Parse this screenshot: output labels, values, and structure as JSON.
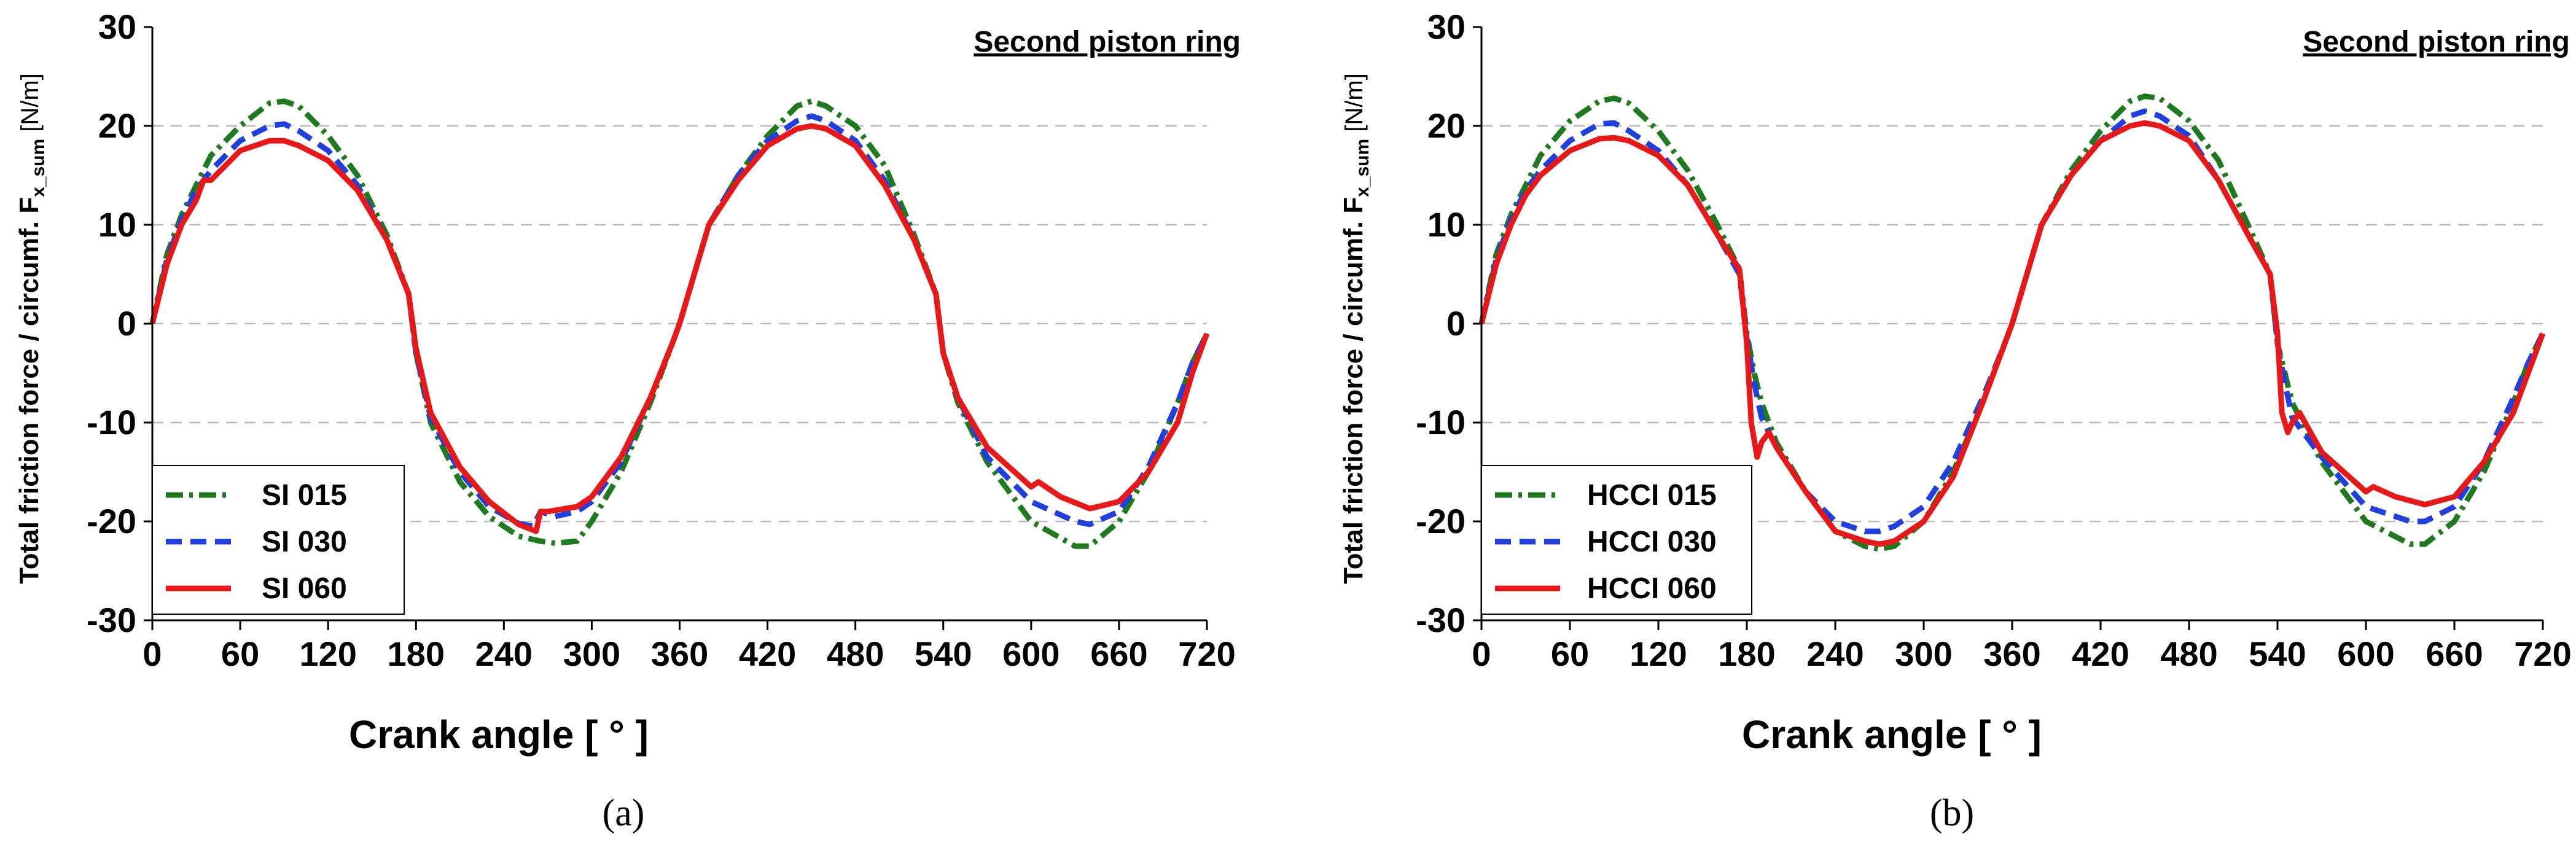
{
  "chart_data": [
    {
      "panel_label": "(a)",
      "type": "line",
      "title": "Second piston ring",
      "xlabel": "Crank angle [ ° ]",
      "ylabel": {
        "main": "Total friction force / circumf.  F",
        "sub": "x_sum",
        "unit": "[N/m]"
      },
      "xlim": [
        0,
        720
      ],
      "ylim": [
        -30,
        30
      ],
      "xticks": [
        "0",
        "60",
        "120",
        "180",
        "240",
        "300",
        "360",
        "420",
        "480",
        "540",
        "600",
        "660",
        "720"
      ],
      "yticks": [
        "30",
        "20",
        "10",
        "0",
        "-10",
        "-20",
        "-30"
      ],
      "ytick_values": [
        30,
        20,
        10,
        0,
        -10,
        -20,
        -30
      ],
      "xtick_values": [
        0,
        60,
        120,
        180,
        240,
        300,
        360,
        420,
        480,
        540,
        600,
        660,
        720
      ],
      "grid_y": [
        20,
        10,
        0,
        -10,
        -20
      ],
      "legend": {
        "position": "bottom-left"
      },
      "series": [
        {
          "name": "SI 015",
          "color": "#1f7a1f",
          "dash": "dashdot",
          "x": [
            0,
            10,
            20,
            30,
            40,
            60,
            80,
            90,
            100,
            120,
            140,
            160,
            175,
            180,
            190,
            210,
            230,
            250,
            265,
            275,
            290,
            300,
            320,
            340,
            355,
            360,
            370,
            380,
            400,
            420,
            440,
            450,
            460,
            480,
            500,
            520,
            535,
            540,
            550,
            570,
            600,
            630,
            640,
            660,
            680,
            700,
            710,
            720
          ],
          "y": [
            0,
            7,
            11,
            14,
            17,
            20,
            22.3,
            22.5,
            22,
            19,
            15,
            9,
            3,
            -3,
            -10,
            -16,
            -19.5,
            -21.5,
            -22,
            -22.2,
            -22,
            -20,
            -15,
            -8,
            -2,
            0,
            5,
            10,
            15,
            19,
            22,
            22.5,
            22,
            20,
            16,
            9,
            3,
            -3,
            -8,
            -14,
            -20,
            -22.5,
            -22.5,
            -20,
            -15,
            -8,
            -4,
            -1
          ]
        },
        {
          "name": "SI 030",
          "color": "#1f3fe0",
          "dash": "dash",
          "x": [
            0,
            10,
            20,
            30,
            40,
            60,
            80,
            90,
            100,
            120,
            140,
            160,
            175,
            180,
            190,
            210,
            230,
            250,
            260,
            265,
            275,
            290,
            300,
            320,
            340,
            355,
            360,
            370,
            380,
            400,
            420,
            440,
            450,
            460,
            480,
            500,
            520,
            535,
            540,
            550,
            570,
            600,
            630,
            640,
            660,
            680,
            700,
            710,
            720
          ],
          "y": [
            0,
            6.5,
            10.5,
            13.5,
            15.5,
            18.5,
            20,
            20.2,
            19.5,
            17.5,
            14,
            8.5,
            3,
            -3,
            -9.5,
            -15,
            -18.5,
            -20.2,
            -20.5,
            -19,
            -19.5,
            -19,
            -18,
            -14,
            -7.5,
            -2,
            0,
            5,
            10,
            15,
            18.5,
            20.5,
            21,
            20.5,
            18.5,
            14.5,
            8.5,
            3,
            -3,
            -7.5,
            -13.5,
            -18,
            -20,
            -20.3,
            -19,
            -14.5,
            -8,
            -4,
            -1
          ]
        },
        {
          "name": "SI 060",
          "color": "#e81818",
          "dash": "solid",
          "x": [
            0,
            10,
            20,
            30,
            35,
            40,
            60,
            80,
            90,
            100,
            120,
            140,
            160,
            175,
            180,
            190,
            210,
            230,
            250,
            262,
            265,
            270,
            290,
            300,
            320,
            340,
            355,
            360,
            370,
            380,
            400,
            420,
            440,
            450,
            460,
            480,
            500,
            520,
            535,
            540,
            550,
            570,
            600,
            605,
            620,
            640,
            660,
            680,
            700,
            710,
            720
          ],
          "y": [
            0,
            6,
            10,
            12.5,
            14.5,
            14.5,
            17.5,
            18.5,
            18.5,
            18,
            16.5,
            13.5,
            8.5,
            3,
            -2.5,
            -9,
            -14.5,
            -18,
            -20.3,
            -21,
            -19,
            -19,
            -18.5,
            -17.5,
            -13.5,
            -7.5,
            -2,
            0,
            5,
            10,
            14.5,
            18,
            19.7,
            20,
            19.7,
            18,
            14,
            8.5,
            3,
            -3,
            -7.5,
            -12.5,
            -16.5,
            -16,
            -17.5,
            -18.7,
            -18,
            -15,
            -10,
            -5,
            -1
          ]
        }
      ]
    },
    {
      "panel_label": "(b)",
      "type": "line",
      "title": "Second piston ring",
      "xlabel": "Crank angle [ ° ]",
      "ylabel": {
        "main": "Total friction force / circumf.  F",
        "sub": "x_sum",
        "unit": "[N/m]"
      },
      "xlim": [
        0,
        720
      ],
      "ylim": [
        -30,
        30
      ],
      "xticks": [
        "0",
        "60",
        "120",
        "180",
        "240",
        "300",
        "360",
        "420",
        "480",
        "540",
        "600",
        "660",
        "720"
      ],
      "yticks": [
        "30",
        "20",
        "10",
        "0",
        "-10",
        "-20",
        "-30"
      ],
      "ytick_values": [
        30,
        20,
        10,
        0,
        -10,
        -20,
        -30
      ],
      "xtick_values": [
        0,
        60,
        120,
        180,
        240,
        300,
        360,
        420,
        480,
        540,
        600,
        660,
        720
      ],
      "grid_y": [
        20,
        10,
        0,
        -10,
        -20
      ],
      "legend": {
        "position": "bottom-left"
      },
      "series": [
        {
          "name": "HCCI 015",
          "color": "#1f7a1f",
          "dash": "dashdot",
          "x": [
            0,
            10,
            20,
            30,
            40,
            60,
            80,
            90,
            100,
            120,
            140,
            160,
            175,
            180,
            185,
            190,
            200,
            220,
            240,
            260,
            270,
            280,
            300,
            320,
            340,
            355,
            360,
            370,
            380,
            400,
            420,
            440,
            450,
            460,
            480,
            500,
            520,
            535,
            540,
            545,
            550,
            570,
            600,
            630,
            640,
            660,
            680,
            700,
            710,
            720
          ],
          "y": [
            0,
            7,
            11,
            14,
            17,
            20.5,
            22.5,
            22.8,
            22.3,
            19.5,
            15.5,
            10,
            5.5,
            -1,
            -5,
            -8,
            -12,
            -17,
            -21,
            -22.5,
            -22.8,
            -22.5,
            -20,
            -15,
            -8,
            -2,
            0,
            5,
            10,
            15.5,
            19.5,
            22.5,
            23,
            22.8,
            20.5,
            16.5,
            10,
            5,
            -2,
            -5,
            -8,
            -14,
            -20,
            -22.3,
            -22.3,
            -20,
            -15,
            -8,
            -4,
            -1
          ]
        },
        {
          "name": "HCCI 030",
          "color": "#1f3fe0",
          "dash": "dash",
          "x": [
            0,
            10,
            20,
            30,
            40,
            60,
            80,
            90,
            100,
            120,
            140,
            160,
            175,
            180,
            185,
            190,
            200,
            220,
            240,
            260,
            270,
            280,
            300,
            320,
            340,
            355,
            360,
            370,
            380,
            400,
            420,
            440,
            450,
            460,
            480,
            500,
            520,
            535,
            540,
            545,
            550,
            570,
            600,
            630,
            640,
            660,
            680,
            700,
            710,
            720
          ],
          "y": [
            0,
            6.5,
            10.5,
            13.5,
            15.5,
            18.5,
            20.2,
            20.3,
            19.5,
            17.5,
            14,
            9,
            5,
            -1.5,
            -6,
            -9.5,
            -12.5,
            -17,
            -20,
            -21,
            -21,
            -20.5,
            -18.5,
            -14,
            -7.5,
            -2,
            0,
            5,
            10,
            15,
            18.5,
            21,
            21.5,
            21,
            19,
            14.5,
            9,
            5,
            -2,
            -6,
            -9.5,
            -13.5,
            -18.5,
            -20,
            -20,
            -18.5,
            -14,
            -7.5,
            -4,
            -1
          ]
        },
        {
          "name": "HCCI 060",
          "color": "#e81818",
          "dash": "solid",
          "x": [
            0,
            10,
            20,
            30,
            40,
            60,
            80,
            90,
            100,
            120,
            140,
            160,
            175,
            180,
            183,
            187,
            190,
            195,
            200,
            220,
            240,
            260,
            270,
            280,
            300,
            320,
            340,
            355,
            360,
            370,
            380,
            400,
            420,
            440,
            450,
            460,
            480,
            500,
            520,
            535,
            540,
            543,
            547,
            550,
            555,
            570,
            600,
            605,
            620,
            640,
            660,
            680,
            700,
            710,
            720
          ],
          "y": [
            0,
            6,
            10,
            13,
            15,
            17.5,
            18.7,
            18.8,
            18.5,
            17,
            14,
            9,
            5.5,
            -2,
            -10,
            -13.5,
            -12,
            -11,
            -12.5,
            -17,
            -21,
            -22,
            -22.3,
            -22,
            -20,
            -15.5,
            -8,
            -2,
            0,
            5,
            10,
            15,
            18.5,
            20,
            20.3,
            20,
            18.5,
            14.5,
            9,
            5,
            -1,
            -9,
            -11,
            -10,
            -9,
            -13,
            -17,
            -16.5,
            -17.5,
            -18.3,
            -17.5,
            -14,
            -9,
            -5,
            -1
          ]
        }
      ]
    }
  ]
}
